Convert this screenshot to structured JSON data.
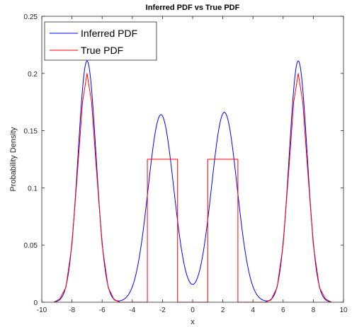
{
  "chart_data": {
    "type": "line",
    "title": "Inferred PDF vs True PDF",
    "xlabel": "x",
    "ylabel": "Probability Density",
    "xlim": [
      -10,
      10
    ],
    "ylim": [
      0,
      0.25
    ],
    "x_ticks": [
      -10,
      -8,
      -6,
      -4,
      -2,
      0,
      2,
      4,
      6,
      8,
      10
    ],
    "y_ticks": [
      0,
      0.05,
      0.1,
      0.15,
      0.2,
      0.25
    ],
    "x_tick_labels": [
      "-10",
      "-8",
      "-6",
      "-4",
      "-2",
      "0",
      "2",
      "4",
      "6",
      "8",
      "10"
    ],
    "y_tick_labels": [
      "0",
      "0.05",
      "0.1",
      "0.15",
      "0.2",
      "0.25"
    ],
    "grid": false,
    "legend": {
      "position": "top-left"
    },
    "series": [
      {
        "name": "Inferred PDF",
        "color": "#0000ff",
        "components": [
          {
            "mean": -7,
            "sd": 0.6,
            "peak": 0.211
          },
          {
            "mean": -2.1,
            "sd": 0.85,
            "peak": 0.164
          },
          {
            "mean": 2.1,
            "sd": 0.85,
            "peak": 0.166
          },
          {
            "mean": 7,
            "sd": 0.6,
            "peak": 0.211
          }
        ],
        "x_range": [
          -9.2,
          9.2
        ]
      },
      {
        "name": "True PDF",
        "color": "#ff0000",
        "points": [
          [
            -9.2,
            0.0
          ],
          [
            -8.8,
            0.003
          ],
          [
            -8.4,
            0.013
          ],
          [
            -8.0,
            0.05
          ],
          [
            -7.6,
            0.12
          ],
          [
            -7.3,
            0.175
          ],
          [
            -7.0,
            0.2
          ],
          [
            -6.7,
            0.175
          ],
          [
            -6.4,
            0.12
          ],
          [
            -6.0,
            0.05
          ],
          [
            -5.6,
            0.013
          ],
          [
            -5.2,
            0.002
          ],
          [
            -4.8,
            0.0
          ],
          [
            -3.0,
            0.0
          ],
          [
            -3.0,
            0.125
          ],
          [
            -1.0,
            0.125
          ],
          [
            -1.0,
            0.0
          ],
          [
            1.0,
            0.0
          ],
          [
            1.0,
            0.125
          ],
          [
            3.0,
            0.125
          ],
          [
            3.0,
            0.0
          ],
          [
            4.8,
            0.0
          ],
          [
            5.2,
            0.002
          ],
          [
            5.6,
            0.013
          ],
          [
            6.0,
            0.05
          ],
          [
            6.4,
            0.12
          ],
          [
            6.7,
            0.175
          ],
          [
            7.0,
            0.2
          ],
          [
            7.3,
            0.175
          ],
          [
            7.6,
            0.12
          ],
          [
            8.0,
            0.05
          ],
          [
            8.4,
            0.013
          ],
          [
            8.8,
            0.003
          ],
          [
            9.2,
            0.0
          ]
        ]
      }
    ]
  }
}
